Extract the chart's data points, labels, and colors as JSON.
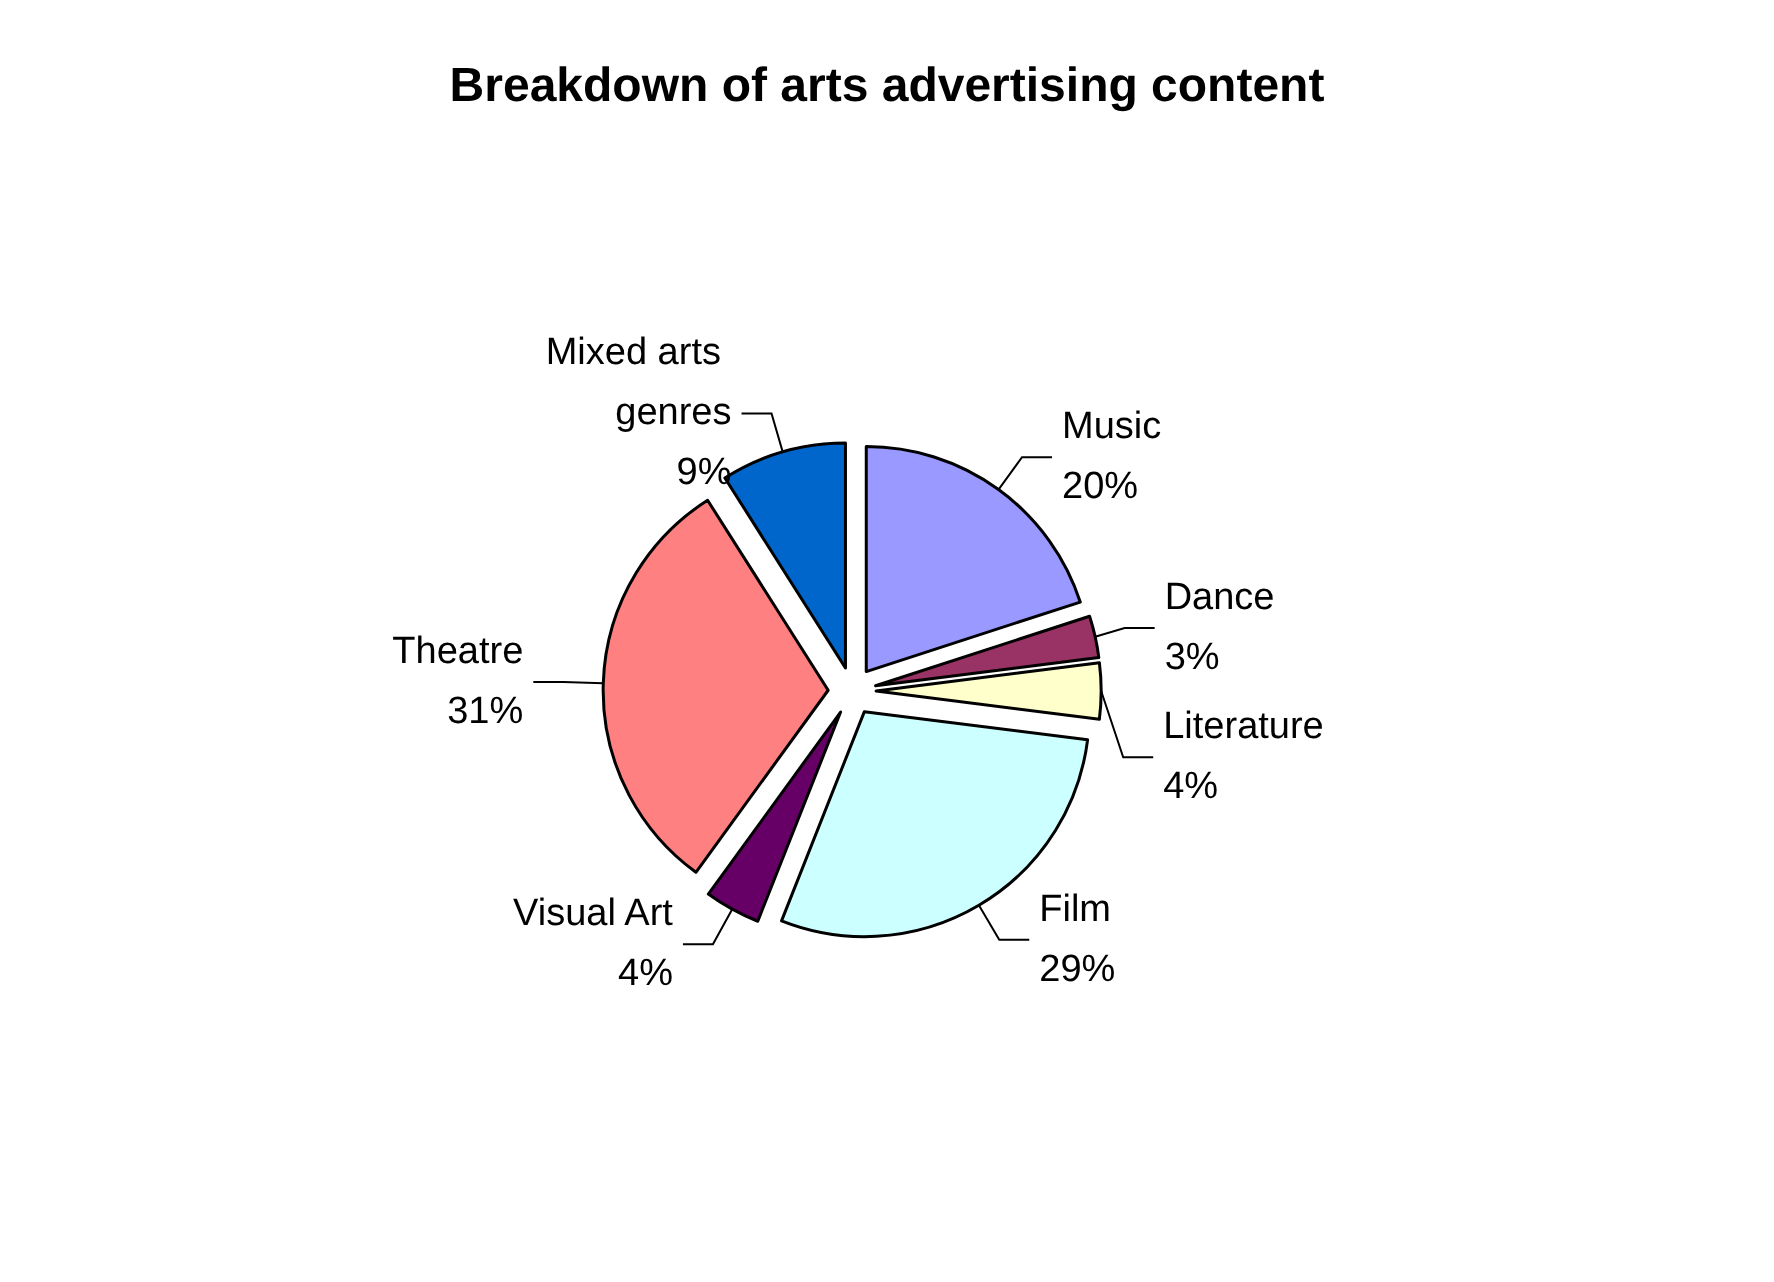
{
  "chart_data": {
    "type": "pie",
    "title": "Breakdown of arts advertising content",
    "categories": [
      "Music",
      "Dance",
      "Literature",
      "Film",
      "Visual Art",
      "Theatre",
      "Mixed arts genres"
    ],
    "values": [
      20,
      3,
      4,
      29,
      4,
      31,
      9
    ],
    "value_labels": [
      "20%",
      "3%",
      "4%",
      "29%",
      "4%",
      "31%",
      "9%"
    ],
    "colors": [
      "#9999ff",
      "#993366",
      "#ffffcc",
      "#ccffff",
      "#660066",
      "#ff8080",
      "#0066cc"
    ],
    "legend": false
  }
}
